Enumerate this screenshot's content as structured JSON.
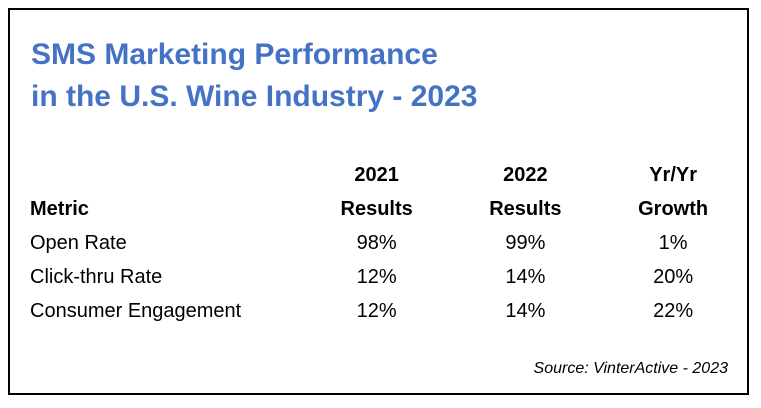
{
  "title": {
    "line1": "SMS Marketing Performance",
    "line2": "in the U.S. Wine Industry - 2023"
  },
  "table": {
    "headers": {
      "metric": "Metric",
      "col2021_line1": "2021",
      "col2021_line2": "Results",
      "col2022_line1": "2022",
      "col2022_line2": "Results",
      "growth_line1": "Yr/Yr",
      "growth_line2": "Growth"
    },
    "rows": [
      {
        "metric": "Open Rate",
        "r2021": "98%",
        "r2022": "99%",
        "growth": "1%"
      },
      {
        "metric": "Click-thru Rate",
        "r2021": "12%",
        "r2022": "14%",
        "growth": "20%"
      },
      {
        "metric": "Consumer Engagement",
        "r2021": "12%",
        "r2022": "14%",
        "growth": "22%"
      }
    ]
  },
  "source": "Source: VinterActive - 2023",
  "colors": {
    "title": "#4472c4",
    "border": "#000000",
    "text": "#000000"
  }
}
